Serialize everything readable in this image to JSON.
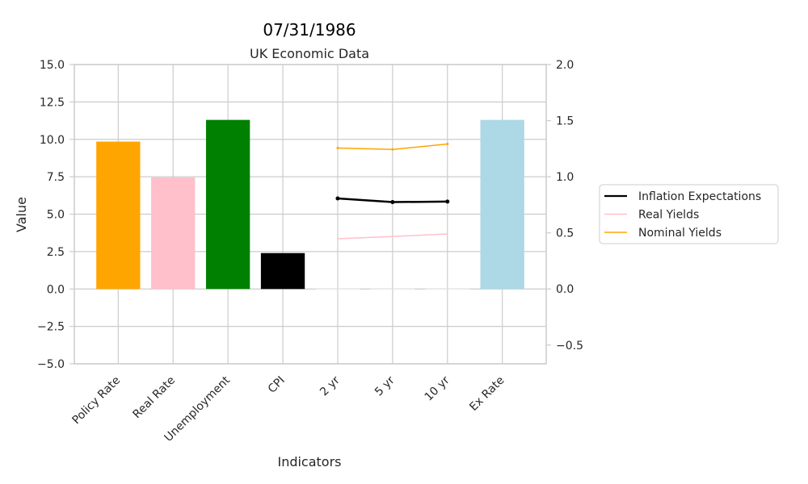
{
  "chart_data": {
    "type": "bar",
    "suptitle": "07/31/1986",
    "title": "UK Economic Data",
    "xlabel": "Indicators",
    "ylabel": "Value",
    "categories": [
      "Policy Rate",
      "Real Rate",
      "Unemployment",
      "CPI",
      "2 yr",
      "5 yr",
      "10 yr",
      "Ex Rate"
    ],
    "bars": {
      "values": [
        9.85,
        7.45,
        11.3,
        2.4,
        0.0,
        0.0,
        0.0,
        11.3
      ],
      "colors": [
        "#ffa500",
        "#ffc0cb",
        "#008000",
        "#000000",
        "#ffffff",
        "#ffffff",
        "#ffffff",
        "#add8e6"
      ]
    },
    "left_axis": {
      "ylim": [
        -5,
        15
      ],
      "ticks": [
        -5.0,
        -2.5,
        0.0,
        2.5,
        5.0,
        7.5,
        10.0,
        12.5,
        15.0
      ],
      "tick_labels": [
        "−5.0",
        "−2.5",
        "0.0",
        "2.5",
        "5.0",
        "7.5",
        "10.0",
        "12.5",
        "15.0"
      ]
    },
    "right_axis": {
      "ylim": [
        -0.667,
        2.0
      ],
      "ticks": [
        -0.5,
        0.0,
        0.5,
        1.0,
        1.5,
        2.0
      ],
      "tick_labels": [
        "−0.5",
        "0.0",
        "0.5",
        "1.0",
        "1.5",
        "2.0"
      ]
    },
    "line_series": [
      {
        "name": "Inflation Expectations",
        "color": "#000000",
        "x": [
          "2 yr",
          "5 yr",
          "10 yr"
        ],
        "values": [
          0.807,
          0.774,
          0.779
        ],
        "marker": true,
        "width": 2.5
      },
      {
        "name": "Real Yields",
        "color": "#ffc0cb",
        "x": [
          "2 yr",
          "5 yr",
          "10 yr"
        ],
        "values": [
          0.447,
          0.468,
          0.49
        ],
        "marker": false,
        "width": 1.5
      },
      {
        "name": "Nominal Yields",
        "color": "#ffa500",
        "x": [
          "2 yr",
          "5 yr",
          "10 yr"
        ],
        "values": [
          1.256,
          1.243,
          1.292
        ],
        "marker": true,
        "width": 1.5
      }
    ],
    "grid": true,
    "legend_position": "right"
  }
}
